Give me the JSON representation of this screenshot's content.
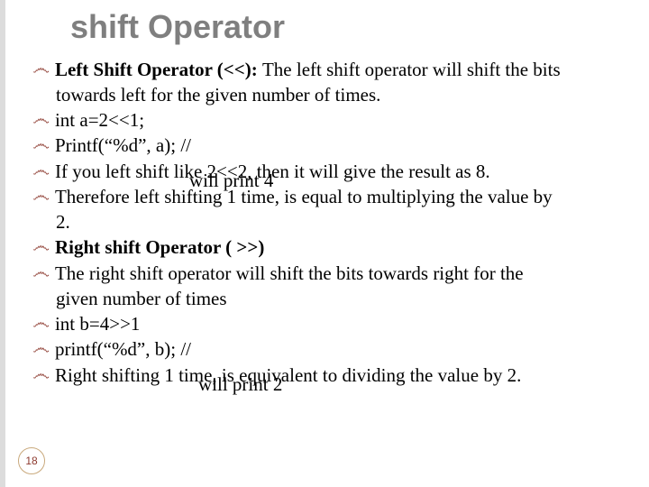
{
  "title": "shift Operator",
  "pageNumber": "18",
  "lines": {
    "l1_lead": "Left Shift Operator (<<): ",
    "l1_rest": "The left shift operator will shift the bits",
    "l1b": "towards left for the given number of times.",
    "l2": "int a=2<<1;",
    "l3": "Printf(“%d”, a); //",
    "l3_annot": "will print 4",
    "l4": "If you left shift like 2<<2, then it will give the result as 8.",
    "l5": "Therefore left shifting 1 time, is equal to multiplying the value by",
    "l5b": "2.",
    "l6": "Right shift Operator ( >>)",
    "l7": "The right shift operator will shift the bits towards right for the",
    "l7b": "given number of times",
    "l8": "int b=4>>1",
    "l8_annot": "will print 2",
    "l9": "printf(“%d”, b); //",
    "l10": " Right shifting 1 time, is equivalent to dividing the value by 2."
  },
  "style": {
    "title_color": "#7f7f7f",
    "bullet_color": "#8d3a2f",
    "text_color": "#000000",
    "background": "#ffffff",
    "title_fontsize": 36,
    "body_fontsize": 21
  }
}
